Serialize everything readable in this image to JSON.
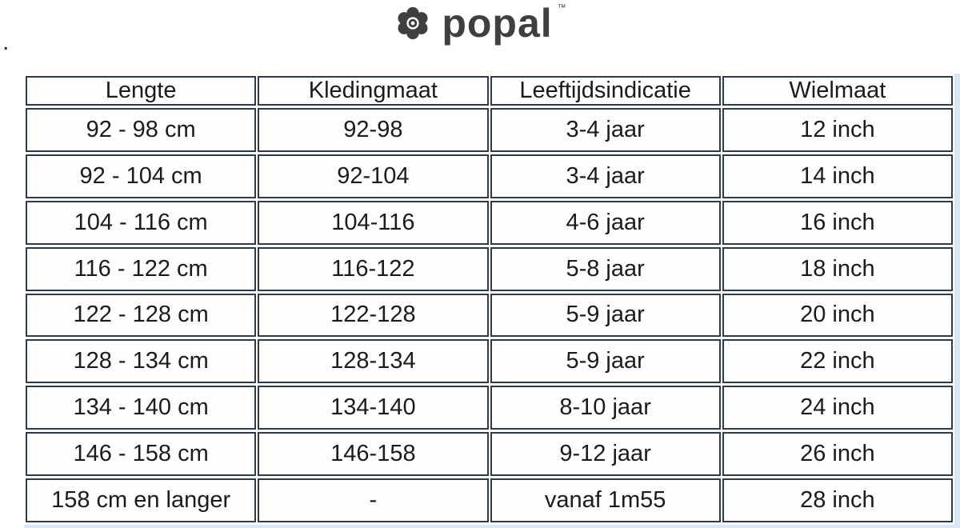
{
  "logo": {
    "brand": "popal",
    "tm": "™",
    "icon": "popal-flower-icon",
    "color": "#3e3f41"
  },
  "stray_mark": ".",
  "chart_data": {
    "type": "table",
    "title": "",
    "columns": [
      "Lengte",
      "Kledingmaat",
      "Leeftijdsindicatie",
      "Wielmaat"
    ],
    "rows": [
      [
        "92 - 98 cm",
        "92-98",
        "3-4 jaar",
        "12 inch"
      ],
      [
        "92 - 104 cm",
        "92-104",
        "3-4 jaar",
        "14 inch"
      ],
      [
        "104 - 116 cm",
        "104-116",
        "4-6 jaar",
        "16 inch"
      ],
      [
        "116 - 122 cm",
        "116-122",
        "5-8 jaar",
        "18 inch"
      ],
      [
        "122 - 128 cm",
        "122-128",
        "5-9 jaar",
        "20 inch"
      ],
      [
        "128 - 134 cm",
        "128-134",
        "5-9 jaar",
        "22 inch"
      ],
      [
        "134 - 140 cm",
        "134-140",
        "8-10 jaar",
        "24 inch"
      ],
      [
        "146 - 158 cm",
        "146-158",
        "9-12 jaar",
        "26 inch"
      ],
      [
        "158 cm en langer",
        "-",
        "vanaf 1m55",
        "28 inch"
      ]
    ]
  },
  "colors": {
    "border": "#2e3b49",
    "text": "#1b1b1d",
    "logo": "#3e3f41",
    "edge_tint": "#d8e7f3",
    "cell_background": "#fefefe"
  }
}
